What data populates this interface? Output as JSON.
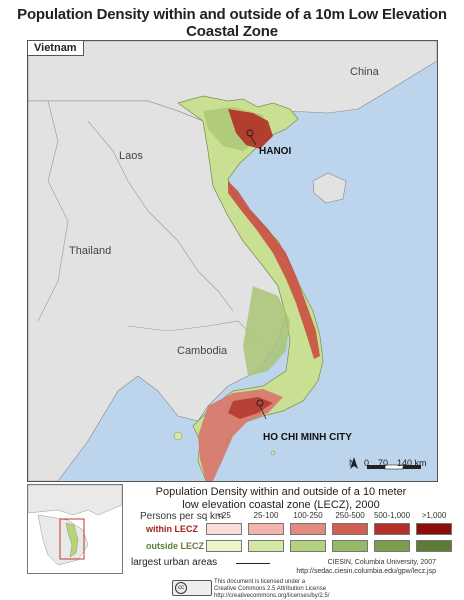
{
  "title": "Population Density within and outside of a 10m Low Elevation Coastal Zone",
  "country_tab": "Vietnam",
  "places": {
    "china": "China",
    "laos": "Laos",
    "thailand": "Thailand",
    "cambodia": "Cambodia"
  },
  "cities": {
    "hanoi": "HANOI",
    "hcmc": "HO CHI MINH CITY"
  },
  "scale_bar": {
    "ticks": [
      "0",
      "70",
      "140 km"
    ],
    "north": "N"
  },
  "legend": {
    "title_line1": "Population Density within and outside of a 10 meter",
    "title_line2": "low elevation coastal zone (LECZ), 2000",
    "unit_label": "Persons per sq km",
    "categories": [
      "<25",
      "25-100",
      "100-250",
      "250-500",
      "500-1,000",
      ">1,000"
    ],
    "within_label": "within LECZ",
    "outside_label": "outside LECZ",
    "within_colors": [
      "#fbdcdc",
      "#f2b3ad",
      "#e38a80",
      "#cf5e53",
      "#b53128",
      "#8b0e0b"
    ],
    "outside_colors": [
      "#eaf5c9",
      "#d3e8a2",
      "#b4d282",
      "#97b866",
      "#7d9c4e",
      "#5f7a34"
    ],
    "urban_label": "largest urban areas"
  },
  "credit": {
    "line1": "CIESIN, Columbia University, 2007",
    "line2": "http://sedac.ciesin.columbia.edu/gpw/lecz.jsp"
  },
  "license": {
    "line1": "This document is licensed under a",
    "line2": "Creative Commons 2.5 Attribution License",
    "line3": "http://creativecommons.org/licenses/by/2.5/"
  },
  "colors": {
    "sea": "#bcd5ec",
    "land_other": "#e2e2e2",
    "vietnam_low": "#cfe39a",
    "vietnam_mid": "#9dc06a",
    "coastal": "#c2473f"
  }
}
